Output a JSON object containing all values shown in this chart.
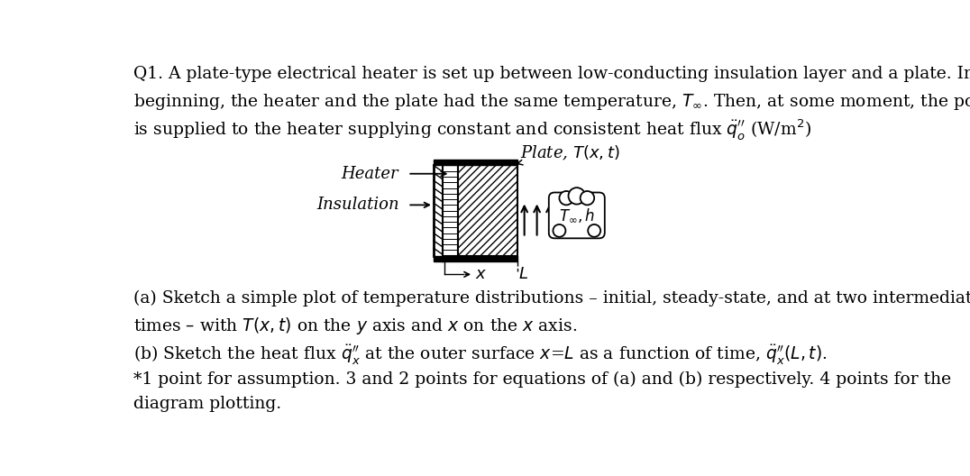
{
  "bg_color": "#ffffff",
  "text_color": "#000000",
  "fig_width": 10.76,
  "fig_height": 5.28,
  "title_line1": "Q1. A plate-type electrical heater is set up between low-conducting insulation layer and a plate. In the",
  "title_line2": "beginning, the heater and the plate had the same temperature, $T_\\infty$. Then, at some moment, the power",
  "title_line3": "is supplied to the heater supplying constant and consistent heat flux $\\ddot{q}_o''$ (W/m$^2$)",
  "part_a": "(a) Sketch a simple plot of temperature distributions – initial, steady-state, and at two intermediate",
  "part_a2": "times – with $T(x,t)$ on the $y$ axis and $x$ on the $x$ axis.",
  "part_b": "(b) Sketch the heat flux $\\ddot{q}_x''$ at the outer surface $x$=$L$ as a function of time, $\\ddot{q}_x''(L, t)$.",
  "part_c": "*1 point for assumption. 3 and 2 points for equations of (a) and (b) respectively. 4 points for the",
  "part_c2": "diagram plotting.",
  "heater_label": "Heater",
  "insulation_label": "Insulation",
  "plate_label": "Plate, $T(x,t)$",
  "x_label": "$x$",
  "L_label": "$L$",
  "Tinf_h_label": "$T_{\\infty},h$",
  "font_size_body": 13.5,
  "font_size_diagram": 13
}
